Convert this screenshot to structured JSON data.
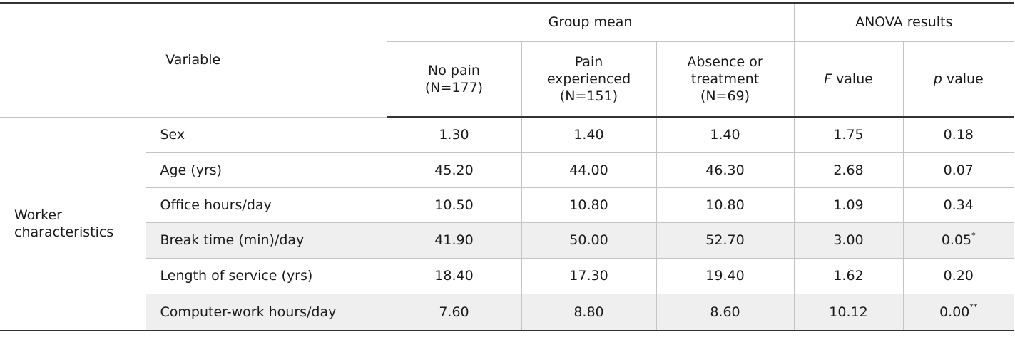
{
  "header": {
    "variable": "Variable",
    "group_mean": "Group mean",
    "anova_results": "ANOVA results",
    "no_pain": [
      "No pain",
      "(N=177)"
    ],
    "pain_experienced": [
      "Pain",
      "experienced",
      "(N=151)"
    ],
    "absence": [
      "Absence or",
      "treatment",
      "(N=69)"
    ],
    "f_value": {
      "italic": "F",
      "rest": " value"
    },
    "p_value": {
      "italic": "p",
      "rest": " value"
    }
  },
  "category": [
    "Worker",
    "characteristics"
  ],
  "rows": [
    {
      "label": "Sex",
      "no_pain": "1.30",
      "pain": "1.40",
      "absence": "1.40",
      "f": "1.75",
      "p": "0.18",
      "sig": "",
      "shaded": false
    },
    {
      "label": "Age (yrs)",
      "no_pain": "45.20",
      "pain": "44.00",
      "absence": "46.30",
      "f": "2.68",
      "p": "0.07",
      "sig": "",
      "shaded": false
    },
    {
      "label": "Office hours/day",
      "no_pain": "10.50",
      "pain": "10.80",
      "absence": "10.80",
      "f": "1.09",
      "p": "0.34",
      "sig": "",
      "shaded": false
    },
    {
      "label": "Break time (min)/day",
      "no_pain": "41.90",
      "pain": "50.00",
      "absence": "52.70",
      "f": "3.00",
      "p": "0.05",
      "sig": "*",
      "shaded": true
    },
    {
      "label": "Length of service (yrs)",
      "no_pain": "18.40",
      "pain": "17.30",
      "absence": "19.40",
      "f": "1.62",
      "p": "0.20",
      "sig": "",
      "shaded": false
    },
    {
      "label": "Computer-work hours/day",
      "no_pain": "7.60",
      "pain": "8.80",
      "absence": "8.60",
      "f": "10.12",
      "p": "0.00",
      "sig": "**",
      "shaded": true
    }
  ]
}
